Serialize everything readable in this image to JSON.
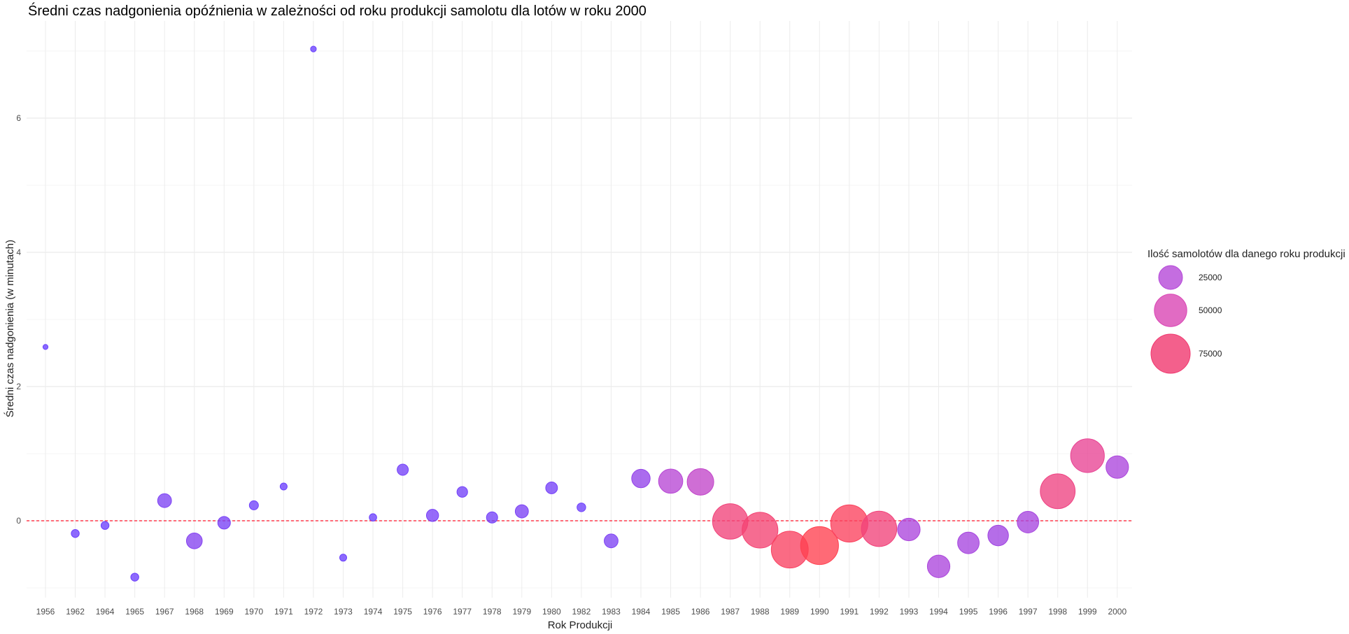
{
  "chart_data": {
    "type": "scatter",
    "title": "Średni czas nadgonienia opóźnienia w zależności od roku produkcji samolotu dla lotów w roku 2000",
    "xlabel": "Rok Produkcji",
    "ylabel": "Średni czas nadgonienia (w minutach)",
    "ylim": [
      -1.05,
      7.35
    ],
    "yticks": [
      0,
      2,
      4,
      6
    ],
    "reference_line": {
      "y": 0,
      "style": "dashed",
      "color": "#ff3b4f"
    },
    "grid": true,
    "legend": {
      "title": "Ilość samolotów dla danego roku produkcji",
      "placement": "right",
      "entries": [
        {
          "label": "25000",
          "value": 25000,
          "color": "#b548d8"
        },
        {
          "label": "50000",
          "value": 50000,
          "color": "#d946b4"
        },
        {
          "label": "75000",
          "value": 75000,
          "color": "#f0386f"
        }
      ]
    },
    "points": [
      {
        "x": "1956",
        "y": 2.59,
        "count": 300
      },
      {
        "x": "1962",
        "y": -0.19,
        "count": 1500
      },
      {
        "x": "1964",
        "y": -0.07,
        "count": 1500
      },
      {
        "x": "1965",
        "y": -0.84,
        "count": 1500
      },
      {
        "x": "1967",
        "y": 0.3,
        "count": 7000
      },
      {
        "x": "1968",
        "y": -0.3,
        "count": 9500
      },
      {
        "x": "1969",
        "y": -0.03,
        "count": 5500
      },
      {
        "x": "1970",
        "y": 0.23,
        "count": 2200
      },
      {
        "x": "1971",
        "y": 0.51,
        "count": 1000
      },
      {
        "x": "1972",
        "y": 7.03,
        "count": 500
      },
      {
        "x": "1973",
        "y": -0.55,
        "count": 1000
      },
      {
        "x": "1974",
        "y": 0.05,
        "count": 1200
      },
      {
        "x": "1975",
        "y": 0.76,
        "count": 4000
      },
      {
        "x": "1976",
        "y": 0.08,
        "count": 5000
      },
      {
        "x": "1977",
        "y": 0.43,
        "count": 3500
      },
      {
        "x": "1978",
        "y": 0.05,
        "count": 4000
      },
      {
        "x": "1979",
        "y": 0.14,
        "count": 6000
      },
      {
        "x": "1980",
        "y": 0.49,
        "count": 4500
      },
      {
        "x": "1982",
        "y": 0.2,
        "count": 2000
      },
      {
        "x": "1983",
        "y": -0.3,
        "count": 7000
      },
      {
        "x": "1984",
        "y": 0.63,
        "count": 14000
      },
      {
        "x": "1985",
        "y": 0.59,
        "count": 26000
      },
      {
        "x": "1986",
        "y": 0.58,
        "count": 32000
      },
      {
        "x": "1987",
        "y": -0.01,
        "count": 60000
      },
      {
        "x": "1988",
        "y": -0.14,
        "count": 62000
      },
      {
        "x": "1989",
        "y": -0.43,
        "count": 66000
      },
      {
        "x": "1990",
        "y": -0.37,
        "count": 70000
      },
      {
        "x": "1991",
        "y": -0.04,
        "count": 67000
      },
      {
        "x": "1992",
        "y": -0.12,
        "count": 60000
      },
      {
        "x": "1993",
        "y": -0.13,
        "count": 22000
      },
      {
        "x": "1994",
        "y": -0.68,
        "count": 22000
      },
      {
        "x": "1995",
        "y": -0.33,
        "count": 20000
      },
      {
        "x": "1996",
        "y": -0.22,
        "count": 18000
      },
      {
        "x": "1997",
        "y": -0.02,
        "count": 20000
      },
      {
        "x": "1998",
        "y": 0.44,
        "count": 58000
      },
      {
        "x": "1999",
        "y": 0.97,
        "count": 54000
      },
      {
        "x": "2000",
        "y": 0.8,
        "count": 22000
      }
    ]
  }
}
